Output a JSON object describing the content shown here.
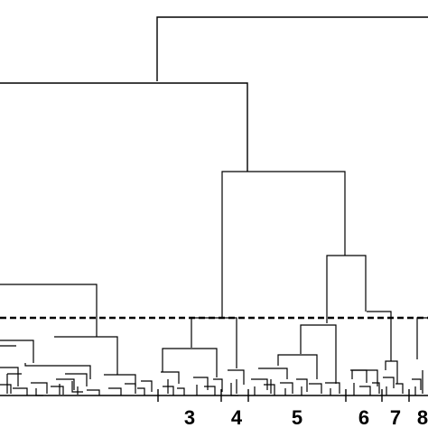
{
  "diagram": {
    "type": "dendrogram",
    "cluster_labels": [
      "3",
      "4",
      "5",
      "6",
      "7",
      "8"
    ]
  }
}
